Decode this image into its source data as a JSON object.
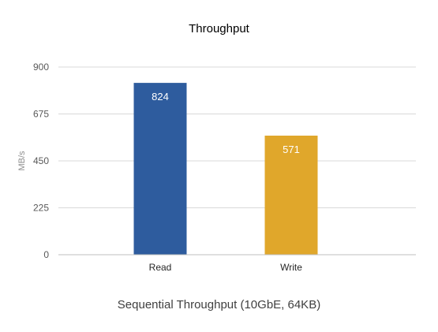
{
  "chart_data": {
    "type": "bar",
    "title": "Throughput",
    "xlabel": "Sequential Throughput (10GbE, 64KB)",
    "ylabel": "MB/s",
    "categories": [
      "Read",
      "Write"
    ],
    "values": [
      824,
      571
    ],
    "ylim": [
      0,
      900
    ],
    "yticks": [
      0,
      225,
      450,
      675,
      900
    ],
    "grid": true,
    "legend": "none",
    "colors": [
      "#2e5c9e",
      "#e0a72b"
    ]
  }
}
